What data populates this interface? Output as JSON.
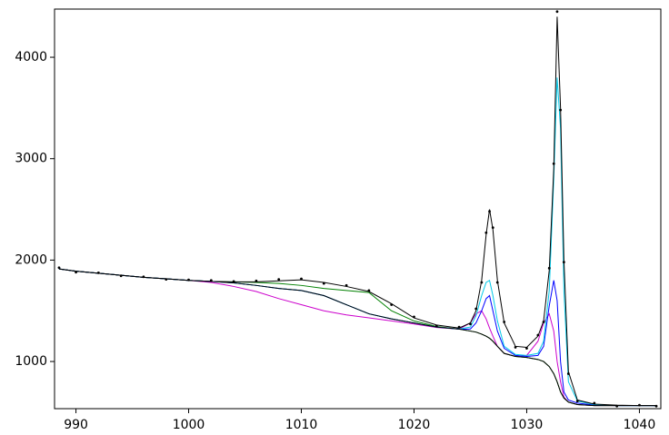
{
  "chart_data": {
    "type": "line",
    "x": [
      988.5,
      990,
      992,
      994,
      996,
      998,
      1000,
      1002,
      1004,
      1006,
      1008,
      1010,
      1012,
      1014,
      1016,
      1018,
      1020,
      1022,
      1024,
      1025,
      1025.5,
      1026,
      1026.4,
      1026.7,
      1027,
      1027.4,
      1028,
      1029,
      1030,
      1031,
      1031.5,
      1032,
      1032.4,
      1032.7,
      1033,
      1033.3,
      1033.7,
      1034.5,
      1036,
      1038,
      1040,
      1041.5
    ],
    "series": [
      {
        "color": "#cc00cc",
        "values": [
          1913,
          1890,
          1870,
          1850,
          1830,
          1815,
          1800,
          1780,
          1740,
          1690,
          1620,
          1560,
          1500,
          1460,
          1430,
          1400,
          1370,
          1335,
          1320,
          1380,
          1470,
          1500,
          1420,
          1330,
          1250,
          1150,
          1080,
          1050,
          1060,
          1200,
          1380,
          1470,
          1300,
          1000,
          800,
          650,
          600,
          575,
          565,
          565,
          565,
          565
        ]
      },
      {
        "color": "#008000",
        "values": [
          1913,
          1890,
          1870,
          1850,
          1830,
          1815,
          1800,
          1790,
          1785,
          1780,
          1770,
          1750,
          1720,
          1700,
          1680,
          1500,
          1400,
          1345,
          1320,
          1300,
          1290,
          1270,
          1250,
          1230,
          1200,
          1150,
          1080,
          1050,
          1040,
          1020,
          1000,
          950,
          880,
          800,
          700,
          640,
          600,
          575,
          565,
          565,
          565,
          565
        ]
      },
      {
        "color": "#0000ff",
        "values": [
          1913,
          1890,
          1870,
          1850,
          1830,
          1815,
          1800,
          1790,
          1775,
          1750,
          1720,
          1700,
          1650,
          1560,
          1470,
          1420,
          1380,
          1340,
          1320,
          1320,
          1380,
          1500,
          1620,
          1650,
          1500,
          1300,
          1130,
          1060,
          1050,
          1060,
          1150,
          1550,
          1800,
          1600,
          1000,
          700,
          620,
          590,
          570,
          565,
          565,
          565
        ]
      },
      {
        "color": "#00c8e8",
        "values": [
          1913,
          1890,
          1870,
          1850,
          1830,
          1815,
          1800,
          1790,
          1775,
          1750,
          1720,
          1700,
          1650,
          1560,
          1470,
          1420,
          1380,
          1340,
          1320,
          1340,
          1450,
          1650,
          1780,
          1800,
          1650,
          1400,
          1150,
          1070,
          1060,
          1080,
          1200,
          1700,
          2800,
          3800,
          3300,
          1700,
          800,
          610,
          575,
          565,
          565,
          565
        ]
      },
      {
        "color": "#000000",
        "values": [
          1913,
          1890,
          1870,
          1850,
          1830,
          1815,
          1800,
          1790,
          1775,
          1750,
          1720,
          1700,
          1650,
          1560,
          1470,
          1420,
          1380,
          1340,
          1320,
          1300,
          1290,
          1270,
          1250,
          1230,
          1200,
          1150,
          1080,
          1050,
          1040,
          1020,
          1000,
          950,
          880,
          800,
          700,
          640,
          600,
          575,
          565,
          565,
          565,
          565
        ]
      },
      {
        "color": "#000000",
        "values": [
          1913,
          1890,
          1870,
          1850,
          1830,
          1815,
          1800,
          1790,
          1785,
          1785,
          1795,
          1805,
          1780,
          1740,
          1690,
          1570,
          1430,
          1360,
          1330,
          1380,
          1500,
          1800,
          2250,
          2500,
          2300,
          1800,
          1380,
          1150,
          1140,
          1250,
          1400,
          1900,
          2900,
          4400,
          3500,
          2000,
          900,
          620,
          580,
          570,
          565,
          565
        ]
      },
      {
        "color": "#000000",
        "mode": "markers",
        "values": [
          1925,
          1880,
          1875,
          1845,
          1835,
          1810,
          1805,
          1800,
          1790,
          1795,
          1810,
          1815,
          1770,
          1750,
          1700,
          1560,
          1440,
          1350,
          1340,
          1370,
          1520,
          1780,
          2270,
          2480,
          2320,
          1780,
          1390,
          1140,
          1130,
          1260,
          1390,
          1920,
          2950,
          4450,
          3480,
          1980,
          880,
          610,
          590,
          560,
          570,
          560
        ]
      }
    ],
    "xlim": [
      988.1,
      1041.9
    ],
    "ylim": [
      535,
      4475
    ],
    "xticks": [
      990,
      1000,
      1010,
      1020,
      1030,
      1040
    ],
    "yticks": [
      1000,
      2000,
      3000,
      4000
    ]
  }
}
